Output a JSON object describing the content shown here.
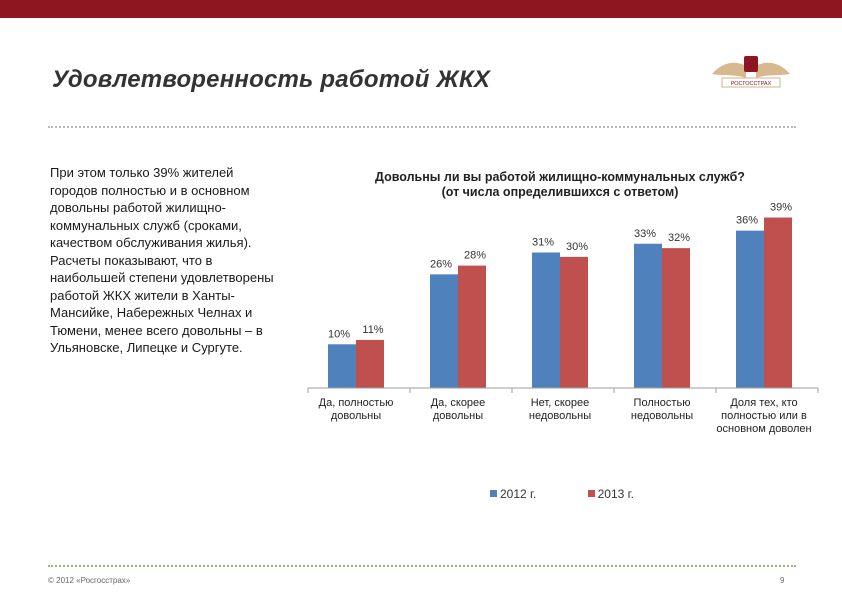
{
  "slide": {
    "title": "Удовлетворенность работой ЖКХ",
    "body_text": "При этом только 39% жителей городов полностью и в основном довольны работой жилищно-коммунальных служб (сроками, качеством обслуживания жилья).\n Расчеты показывают, что в наибольшей степени удовлетворены работой ЖКХ жители в Ханты-Мансийке, Набережных Челнах и Тюмени, менее всего довольны – в Ульяновске, Липецке и Сургуте.",
    "footer_copyright": "© 2012 «Росгосстрах»",
    "page_number": "9",
    "logo_text": "РОСГОССТРАХ"
  },
  "colors": {
    "brand": "#8d1620",
    "series_2012": "#4f81bd",
    "series_2013": "#c0504d",
    "axis": "#9e9e9e"
  },
  "chart_data": {
    "type": "bar",
    "title": "Довольны ли вы работой жилищно-коммунальных служб?",
    "subtitle": "(от числа определившихся с ответом)",
    "categories": [
      "Да, полностью довольны",
      "Да, скорее довольны",
      "Нет, скорее недовольны",
      "Полностью недовольны",
      "Доля тех, кто полностью или в основном доволен"
    ],
    "category_lines": [
      [
        "Да, полностью",
        "довольны"
      ],
      [
        "Да, скорее",
        "довольны"
      ],
      [
        "Нет, скорее",
        "недовольны"
      ],
      [
        "Полностью",
        "недовольны"
      ],
      [
        "Доля тех, кто",
        "полностью или в",
        "основном доволен"
      ]
    ],
    "series": [
      {
        "name": "2012 г.",
        "values": [
          10,
          26,
          31,
          33,
          36
        ],
        "labels": [
          "10%",
          "26%",
          "31%",
          "33%",
          "36%"
        ]
      },
      {
        "name": "2013  г.",
        "values": [
          11,
          28,
          30,
          32,
          39
        ],
        "labels": [
          "11%",
          "28%",
          "30%",
          "32%",
          "39%"
        ]
      }
    ],
    "ylim": [
      0,
      40
    ],
    "legend_position": "bottom",
    "grid": false
  }
}
